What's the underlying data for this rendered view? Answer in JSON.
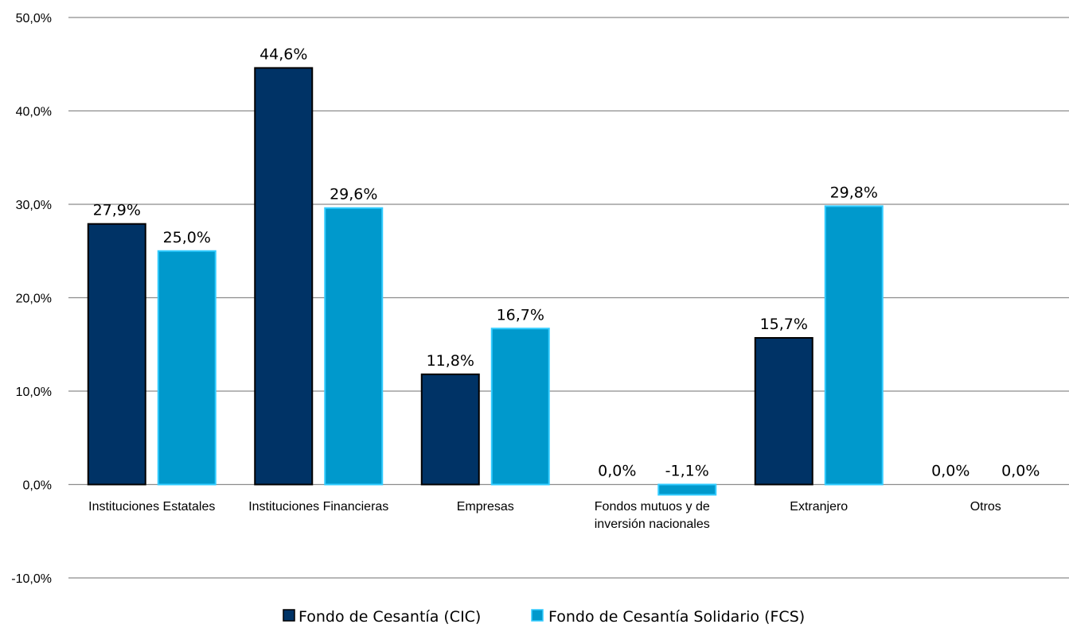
{
  "chart_data": {
    "type": "bar",
    "categories": [
      [
        "Instituciones Estatales"
      ],
      [
        "Instituciones Financieras"
      ],
      [
        "Empresas"
      ],
      [
        "Fondos mutuos y de",
        "inversión nacionales"
      ],
      [
        "Extranjero"
      ],
      [
        "Otros"
      ]
    ],
    "series": [
      {
        "name": "Fondo de Cesantía (CIC)",
        "color": "#003366",
        "values": [
          27.9,
          44.6,
          11.8,
          0.0,
          15.7,
          0.0
        ],
        "labels": [
          "27,9%",
          "44,6%",
          "11,8%",
          "0,0%",
          "15,7%",
          "0,0%"
        ]
      },
      {
        "name": "Fondo de Cesantía Solidario (FCS)",
        "color": "#0099cc",
        "border": "#33ccff",
        "values": [
          25.0,
          29.6,
          16.7,
          -1.1,
          29.8,
          0.0
        ],
        "labels": [
          "25,0%",
          "29,6%",
          "16,7%",
          "-1,1%",
          "29,8%",
          "0,0%"
        ]
      }
    ],
    "ylim": [
      -10,
      50
    ],
    "yticks": [
      {
        "value": 50,
        "label": "50,0%"
      },
      {
        "value": 40,
        "label": "40,0%"
      },
      {
        "value": 30,
        "label": "30,0%"
      },
      {
        "value": 20,
        "label": "20,0%"
      },
      {
        "value": 10,
        "label": "10,0%"
      },
      {
        "value": 0,
        "label": "0,0%"
      },
      {
        "value": -10,
        "label": "-10,0%"
      }
    ],
    "grid": true,
    "legend": "bottom",
    "title": "",
    "xlabel": "",
    "ylabel": ""
  }
}
